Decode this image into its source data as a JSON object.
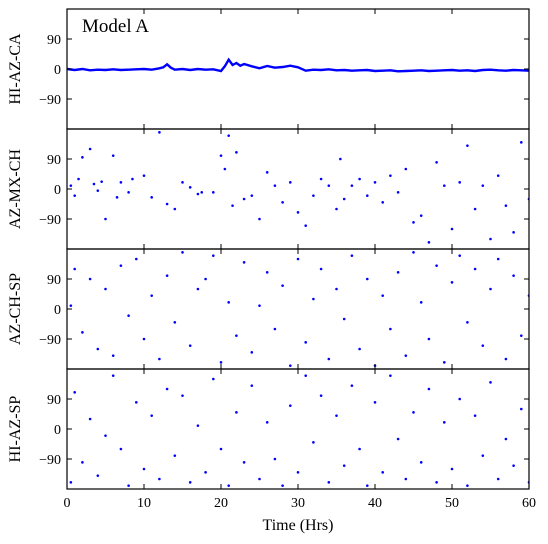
{
  "chart_data": {
    "type": "scatter",
    "annotation": "Model A",
    "xlabel": "Time (Hrs)",
    "xlim": [
      0,
      60
    ],
    "xticks": [
      0,
      10,
      20,
      30,
      40,
      50,
      60
    ],
    "ylim": [
      -180,
      180
    ],
    "yticks": [
      90,
      0,
      -90
    ],
    "ytick_labels": [
      "90",
      "0",
      "−90"
    ],
    "grid": false,
    "color": "#0000ff",
    "panels": [
      {
        "name": "HI-AZ-CA",
        "ylabel": "HI-AZ-CA",
        "style": "line",
        "x": [
          0,
          1,
          2,
          3,
          4,
          5,
          6,
          7,
          8,
          9,
          10,
          11,
          12,
          12.5,
          13,
          13.5,
          14,
          15,
          16,
          17,
          18,
          19,
          20,
          20.5,
          21,
          21.5,
          22,
          22.5,
          23,
          24,
          25,
          26,
          27,
          28,
          29,
          30,
          31,
          32,
          33,
          34,
          35,
          36,
          37,
          38,
          39,
          40,
          41,
          42,
          43,
          44,
          45,
          46,
          47,
          48,
          49,
          50,
          51,
          52,
          53,
          54,
          55,
          56,
          57,
          58,
          59,
          60
        ],
        "y": [
          0,
          -3,
          0,
          -4,
          -2,
          -3,
          -1,
          -3,
          -2,
          -1,
          0,
          -2,
          2,
          5,
          14,
          4,
          -2,
          0,
          -3,
          0,
          -2,
          -1,
          -6,
          8,
          28,
          12,
          18,
          10,
          15,
          8,
          2,
          9,
          4,
          6,
          10,
          5,
          -5,
          -2,
          -3,
          -1,
          -4,
          -3,
          -5,
          -4,
          -3,
          -6,
          -5,
          -4,
          -7,
          -6,
          -5,
          -4,
          -6,
          -5,
          -4,
          -3,
          -5,
          -4,
          -6,
          -3,
          -2,
          -4,
          -5,
          -3,
          -4,
          -5
        ]
      },
      {
        "name": "AZ-MX-CH",
        "ylabel": "AZ-MX-CH",
        "style": "scatter",
        "points": [
          [
            0.5,
            10
          ],
          [
            1,
            -20
          ],
          [
            1.5,
            30
          ],
          [
            2,
            95
          ],
          [
            3,
            120
          ],
          [
            3.5,
            15
          ],
          [
            4,
            -5
          ],
          [
            4.5,
            22
          ],
          [
            5,
            -90
          ],
          [
            6,
            100
          ],
          [
            6.5,
            -25
          ],
          [
            7,
            20
          ],
          [
            8,
            -10
          ],
          [
            8.5,
            30
          ],
          [
            10,
            40
          ],
          [
            11,
            -25
          ],
          [
            12,
            170
          ],
          [
            13,
            -45
          ],
          [
            14,
            -60
          ],
          [
            15,
            20
          ],
          [
            16,
            5
          ],
          [
            17,
            -15
          ],
          [
            17.5,
            -10
          ],
          [
            19,
            -10
          ],
          [
            20,
            100
          ],
          [
            20.5,
            60
          ],
          [
            21,
            160
          ],
          [
            21.5,
            -50
          ],
          [
            22,
            110
          ],
          [
            23,
            -30
          ],
          [
            24,
            -20
          ],
          [
            25,
            -90
          ],
          [
            26,
            50
          ],
          [
            27,
            10
          ],
          [
            28,
            -40
          ],
          [
            29,
            20
          ],
          [
            30,
            -70
          ],
          [
            31,
            -110
          ],
          [
            32,
            -20
          ],
          [
            33,
            30
          ],
          [
            34,
            10
          ],
          [
            35,
            -60
          ],
          [
            35.5,
            90
          ],
          [
            36,
            -30
          ],
          [
            37,
            10
          ],
          [
            38,
            30
          ],
          [
            39,
            -20
          ],
          [
            40,
            20
          ],
          [
            41,
            -40
          ],
          [
            42,
            40
          ],
          [
            43,
            -10
          ],
          [
            44,
            60
          ],
          [
            45,
            -100
          ],
          [
            46,
            -80
          ],
          [
            47,
            -160
          ],
          [
            48,
            80
          ],
          [
            49,
            10
          ],
          [
            50,
            -120
          ],
          [
            51,
            20
          ],
          [
            52,
            130
          ],
          [
            53,
            -60
          ],
          [
            54,
            10
          ],
          [
            55,
            -150
          ],
          [
            56,
            40
          ],
          [
            57,
            -50
          ],
          [
            58,
            -130
          ],
          [
            59,
            140
          ],
          [
            60,
            -30
          ]
        ]
      },
      {
        "name": "AZ-CH-SP",
        "ylabel": "AZ-CH-SP",
        "style": "scatter",
        "points": [
          [
            0.5,
            10
          ],
          [
            1,
            120
          ],
          [
            2,
            -70
          ],
          [
            3,
            90
          ],
          [
            4,
            -120
          ],
          [
            5,
            60
          ],
          [
            6,
            -140
          ],
          [
            7,
            130
          ],
          [
            8,
            -20
          ],
          [
            9,
            150
          ],
          [
            10,
            -90
          ],
          [
            11,
            40
          ],
          [
            12,
            -150
          ],
          [
            13,
            100
          ],
          [
            14,
            -40
          ],
          [
            15,
            170
          ],
          [
            16,
            -110
          ],
          [
            17,
            60
          ],
          [
            18,
            90
          ],
          [
            19,
            160
          ],
          [
            20,
            -160
          ],
          [
            21,
            20
          ],
          [
            22,
            -80
          ],
          [
            23,
            140
          ],
          [
            24,
            -130
          ],
          [
            25,
            10
          ],
          [
            26,
            110
          ],
          [
            27,
            -60
          ],
          [
            28,
            70
          ],
          [
            29,
            -170
          ],
          [
            30,
            150
          ],
          [
            31,
            -100
          ],
          [
            32,
            30
          ],
          [
            33,
            120
          ],
          [
            34,
            -150
          ],
          [
            35,
            60
          ],
          [
            36,
            -30
          ],
          [
            37,
            160
          ],
          [
            38,
            -120
          ],
          [
            39,
            90
          ],
          [
            40,
            -170
          ],
          [
            41,
            40
          ],
          [
            42,
            -60
          ],
          [
            43,
            110
          ],
          [
            44,
            -140
          ],
          [
            45,
            170
          ],
          [
            46,
            20
          ],
          [
            47,
            -90
          ],
          [
            48,
            130
          ],
          [
            49,
            -160
          ],
          [
            50,
            80
          ],
          [
            51,
            160
          ],
          [
            52,
            -40
          ],
          [
            53,
            120
          ],
          [
            54,
            -110
          ],
          [
            55,
            60
          ],
          [
            56,
            150
          ],
          [
            57,
            -150
          ],
          [
            58,
            100
          ],
          [
            59,
            -80
          ],
          [
            60,
            40
          ]
        ]
      },
      {
        "name": "HI-AZ-SP",
        "ylabel": "HI-AZ-SP",
        "style": "scatter",
        "points": [
          [
            0.5,
            -160
          ],
          [
            1,
            110
          ],
          [
            2,
            -100
          ],
          [
            3,
            30
          ],
          [
            4,
            -140
          ],
          [
            5,
            -20
          ],
          [
            6,
            160
          ],
          [
            7,
            -60
          ],
          [
            8,
            -170
          ],
          [
            9,
            80
          ],
          [
            10,
            -120
          ],
          [
            11,
            40
          ],
          [
            12,
            -150
          ],
          [
            13,
            120
          ],
          [
            14,
            -80
          ],
          [
            15,
            100
          ],
          [
            16,
            -160
          ],
          [
            17,
            10
          ],
          [
            18,
            -130
          ],
          [
            19,
            150
          ],
          [
            20,
            -60
          ],
          [
            21,
            -170
          ],
          [
            22,
            50
          ],
          [
            23,
            -100
          ],
          [
            24,
            130
          ],
          [
            25,
            -150
          ],
          [
            26,
            20
          ],
          [
            27,
            -90
          ],
          [
            28,
            -170
          ],
          [
            29,
            70
          ],
          [
            30,
            -130
          ],
          [
            31,
            160
          ],
          [
            32,
            -40
          ],
          [
            33,
            100
          ],
          [
            34,
            -160
          ],
          [
            35,
            40
          ],
          [
            36,
            -110
          ],
          [
            37,
            130
          ],
          [
            38,
            -60
          ],
          [
            39,
            -170
          ],
          [
            40,
            80
          ],
          [
            41,
            -130
          ],
          [
            42,
            160
          ],
          [
            43,
            -30
          ],
          [
            44,
            -150
          ],
          [
            45,
            50
          ],
          [
            46,
            -100
          ],
          [
            47,
            120
          ],
          [
            48,
            -160
          ],
          [
            49,
            20
          ],
          [
            50,
            -120
          ],
          [
            51,
            90
          ],
          [
            52,
            -170
          ],
          [
            53,
            40
          ],
          [
            54,
            -80
          ],
          [
            55,
            140
          ],
          [
            56,
            -150
          ],
          [
            57,
            -30
          ],
          [
            58,
            -110
          ],
          [
            59,
            60
          ],
          [
            60,
            -160
          ]
        ]
      }
    ]
  }
}
